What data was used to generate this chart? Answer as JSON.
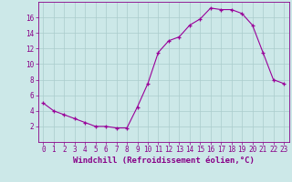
{
  "hours": [
    0,
    1,
    2,
    3,
    4,
    5,
    6,
    7,
    8,
    9,
    10,
    11,
    12,
    13,
    14,
    15,
    16,
    17,
    18,
    19,
    20,
    21,
    22,
    23
  ],
  "values": [
    5.0,
    4.0,
    3.5,
    3.0,
    2.5,
    2.0,
    2.0,
    1.8,
    1.8,
    4.5,
    7.5,
    11.5,
    13.0,
    13.5,
    15.0,
    15.8,
    17.2,
    17.0,
    17.0,
    16.5,
    15.0,
    11.5,
    8.0,
    7.5
  ],
  "line_color": "#990099",
  "marker": "+",
  "bg_color": "#cce8e8",
  "grid_color": "#aacccc",
  "xlabel": "Windchill (Refroidissement éolien,°C)",
  "ylim": [
    0,
    18
  ],
  "xlim": [
    -0.5,
    23.5
  ],
  "yticks": [
    2,
    4,
    6,
    8,
    10,
    12,
    14,
    16
  ],
  "xticks": [
    0,
    1,
    2,
    3,
    4,
    5,
    6,
    7,
    8,
    9,
    10,
    11,
    12,
    13,
    14,
    15,
    16,
    17,
    18,
    19,
    20,
    21,
    22,
    23
  ],
  "tick_color": "#880088",
  "tick_fontsize": 5.5,
  "xlabel_fontsize": 6.5
}
